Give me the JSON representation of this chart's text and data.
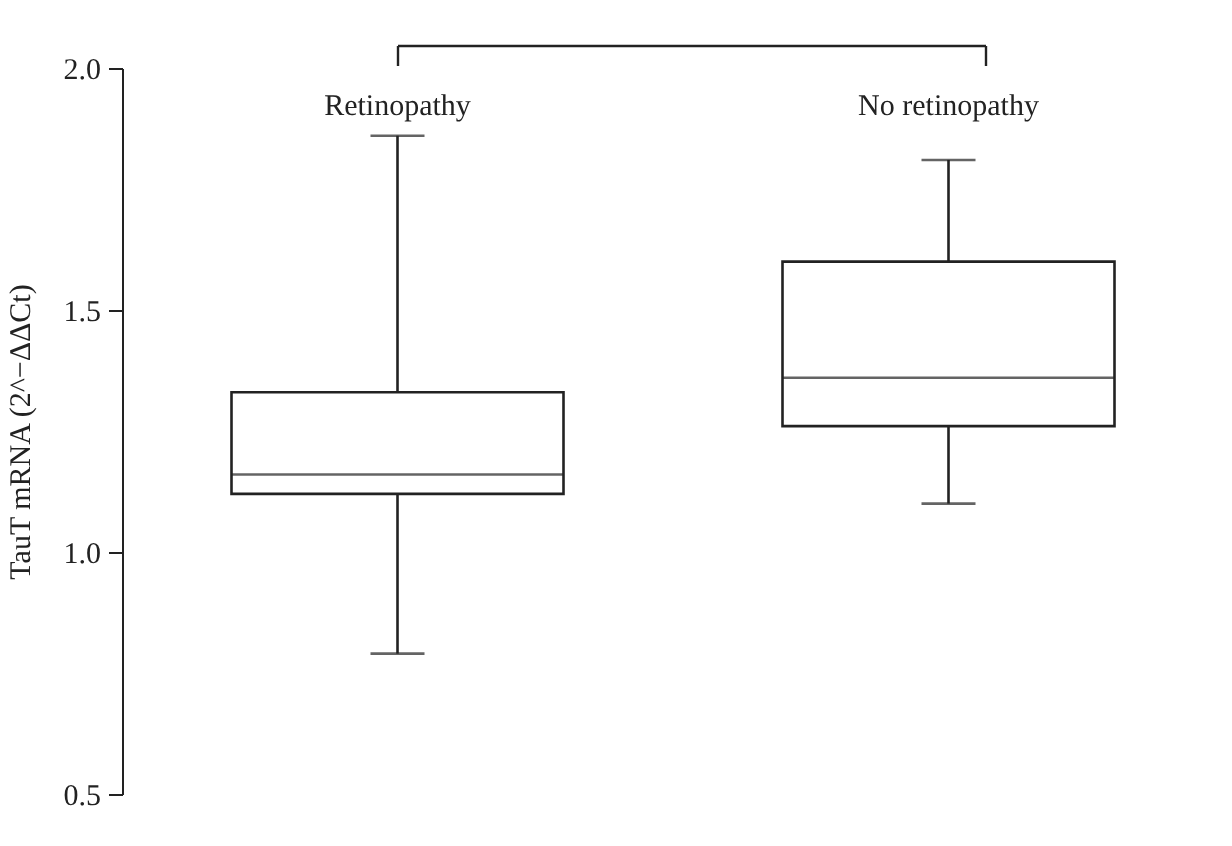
{
  "chart_data": {
    "type": "box",
    "ylabel": "TauT mRNA (2^−ΔΔCt)",
    "categories": [
      "Retinopathy",
      "No retinopathy"
    ],
    "boxes": [
      {
        "low": 0.79,
        "q1": 1.12,
        "median": 1.16,
        "q3": 1.33,
        "high": 1.86
      },
      {
        "low": 1.1,
        "q1": 1.26,
        "median": 1.36,
        "q3": 1.6,
        "high": 1.81
      }
    ],
    "ylim": [
      0.5,
      2.0
    ],
    "yticks": [
      {
        "value": 0.5,
        "label": "0.5"
      },
      {
        "value": 1.0,
        "label": "1.0"
      },
      {
        "value": 1.5,
        "label": "1.5"
      },
      {
        "value": 2.0,
        "label": "2.0"
      }
    ],
    "grid": false
  }
}
